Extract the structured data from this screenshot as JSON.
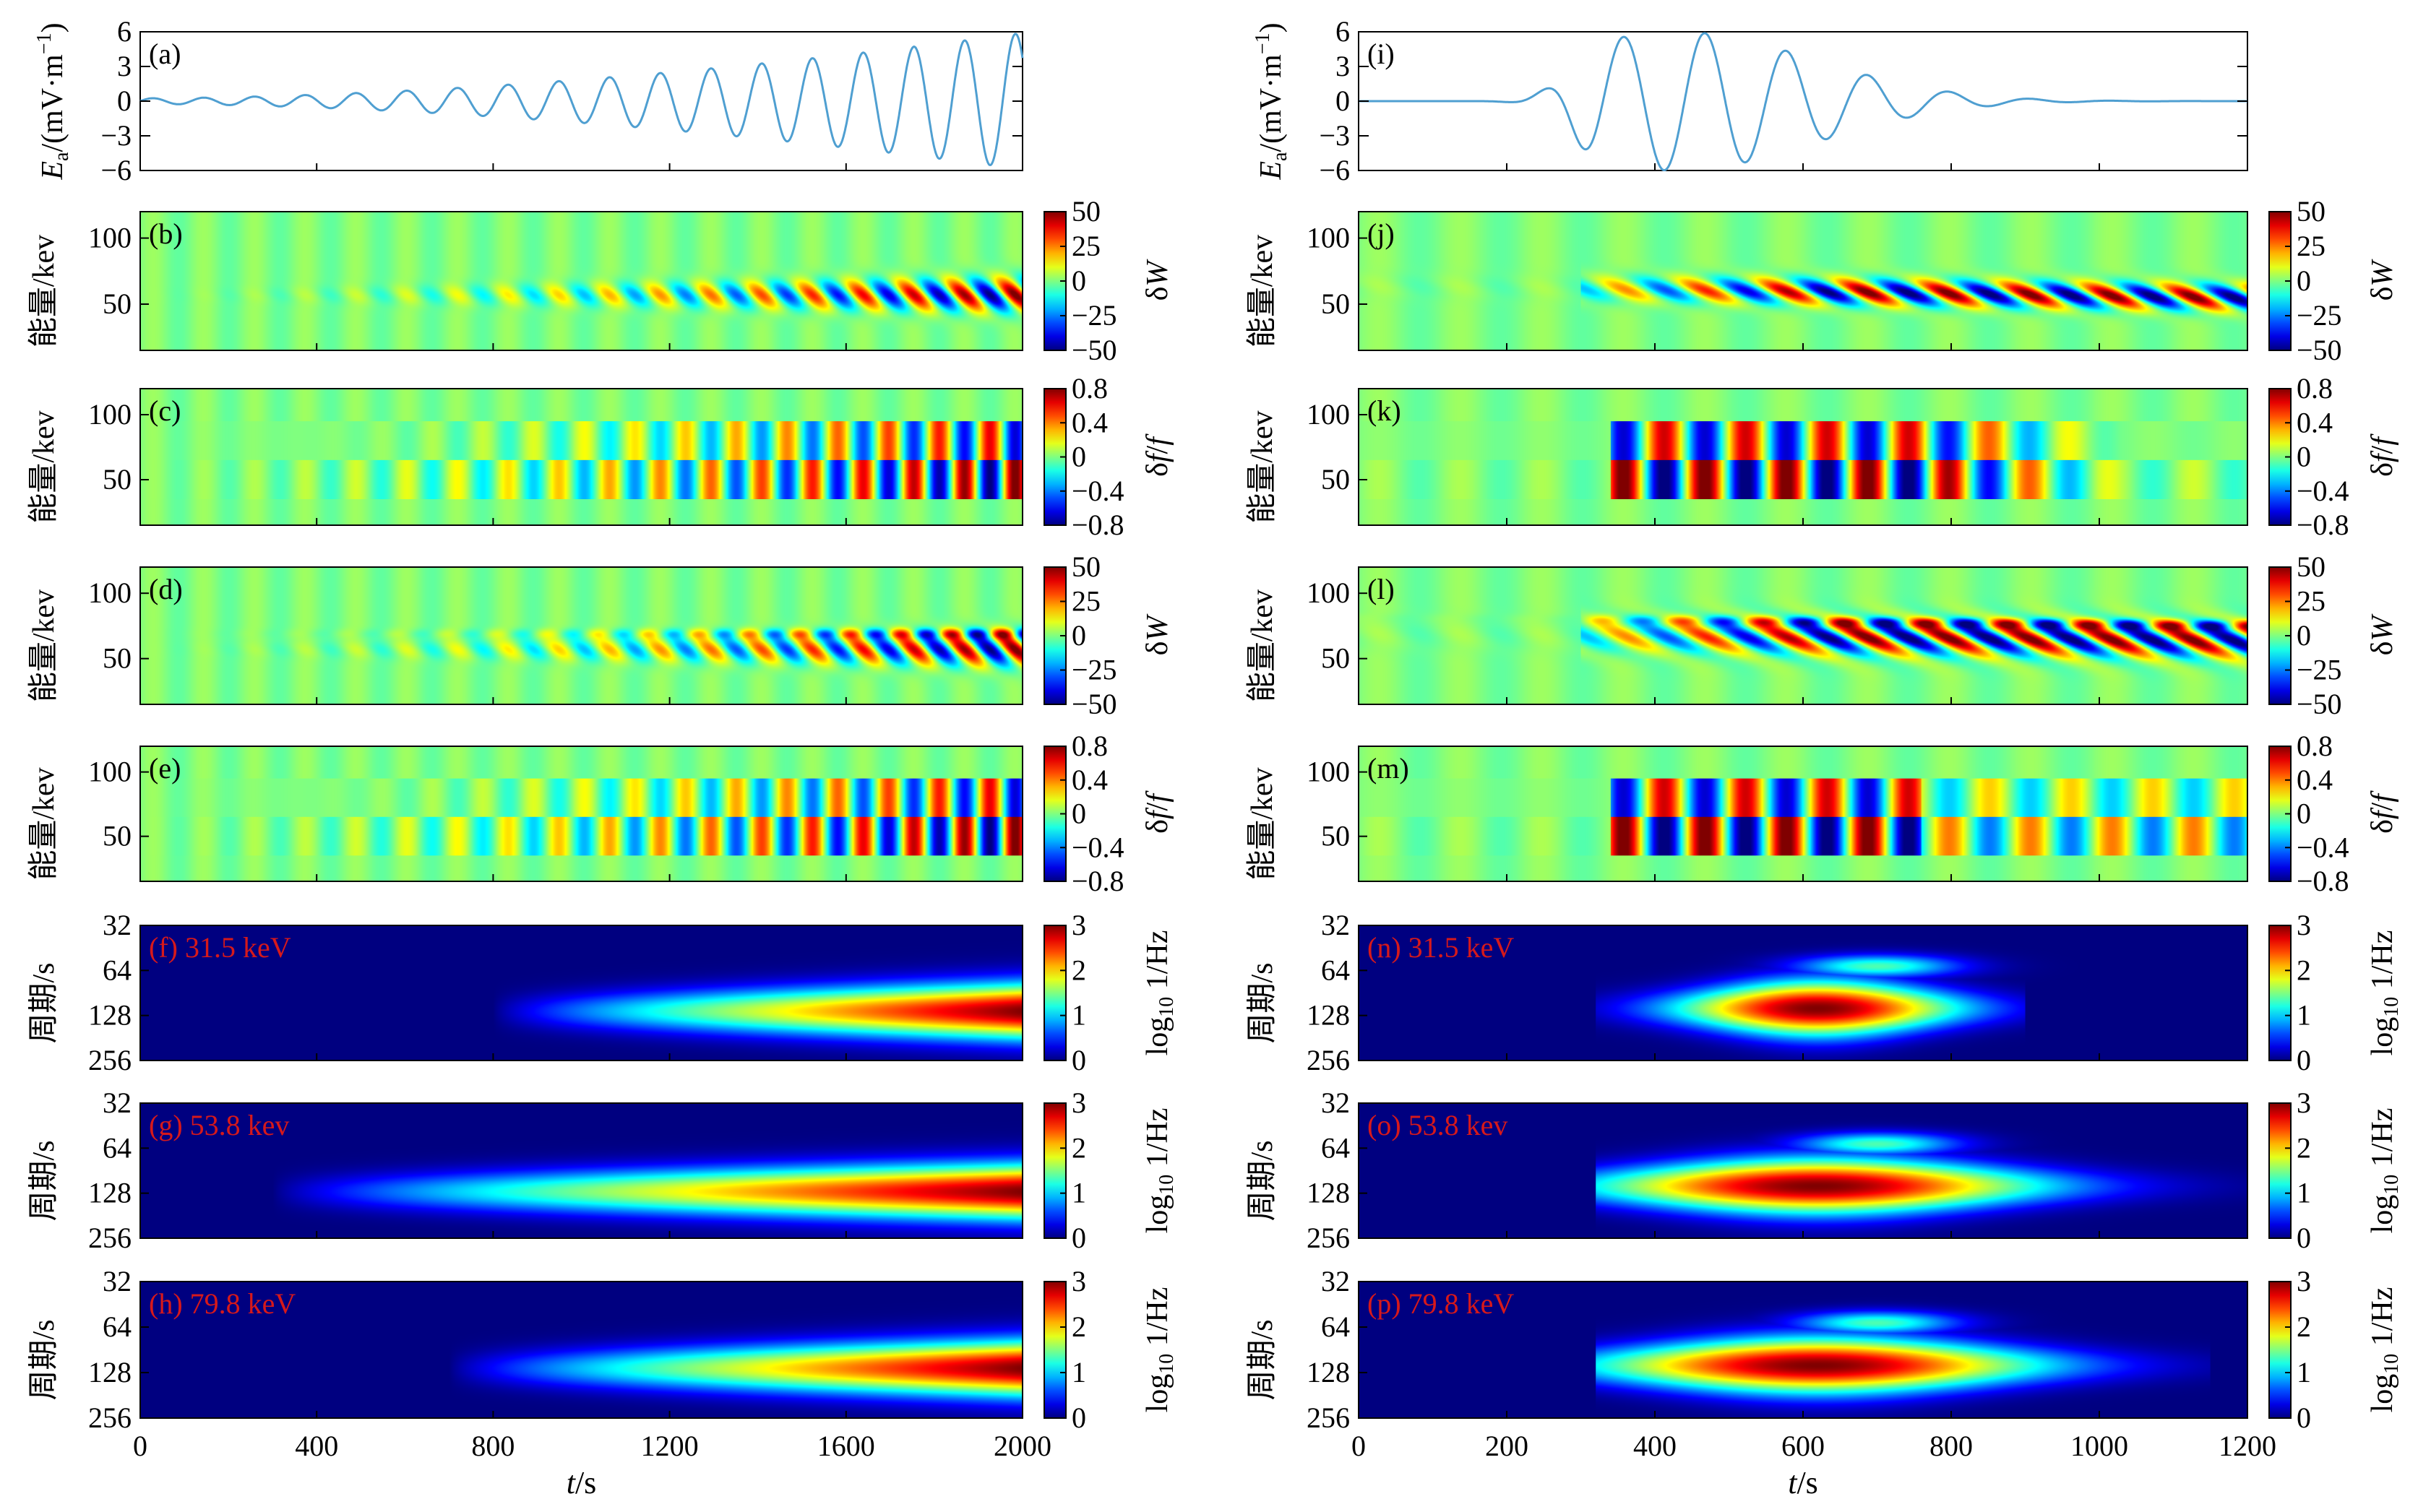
{
  "figure": {
    "time_label": "t/s",
    "energy_label": "能量/kev",
    "period_label": "周期/s",
    "ea_label": "E_a/(mV·m^-1)",
    "dw_cbar_label": "δW",
    "df_cbar_label": "δf/f",
    "pw_cbar_label": "log10 1/Hz",
    "colormap": "jet",
    "curve_color": "#4f9fd1",
    "panel_text_color": "#d6191b"
  },
  "chart_data": [
    {
      "type": "line",
      "panel": "(a)",
      "column": "left",
      "xlim": [
        0,
        2000
      ],
      "ylim": [
        -6,
        6
      ],
      "yticks": [
        "6",
        "3",
        "0",
        "-3",
        "-6"
      ],
      "wave": {
        "period_s": 115,
        "amplitude_start_mV_per_m": 0.25,
        "amplitude_end_mV_per_m": 5.9
      }
    },
    {
      "type": "heatmap",
      "panel": "(b)",
      "column": "left",
      "quantity": "δW",
      "xlim": [
        0,
        2000
      ],
      "yticks": [
        "100",
        "50"
      ],
      "clim": [
        -50,
        50
      ],
      "cbar_ticks": [
        "50",
        "25",
        "0",
        "-25",
        "-50"
      ]
    },
    {
      "type": "heatmap",
      "panel": "(c)",
      "column": "left",
      "quantity": "δf/f",
      "xlim": [
        0,
        2000
      ],
      "yticks": [
        "100",
        "50"
      ],
      "clim": [
        -0.8,
        0.8
      ],
      "cbar_ticks": [
        "0.8",
        "0.4",
        "0",
        "-0.4",
        "-0.8"
      ]
    },
    {
      "type": "heatmap",
      "panel": "(d)",
      "column": "left",
      "quantity": "δW",
      "xlim": [
        0,
        2000
      ],
      "yticks": [
        "100",
        "50"
      ],
      "clim": [
        -50,
        50
      ],
      "cbar_ticks": [
        "50",
        "25",
        "0",
        "-25",
        "-50"
      ]
    },
    {
      "type": "heatmap",
      "panel": "(e)",
      "column": "left",
      "quantity": "δf/f",
      "xlim": [
        0,
        2000
      ],
      "yticks": [
        "100",
        "50"
      ],
      "clim": [
        -0.8,
        0.8
      ],
      "cbar_ticks": [
        "0.8",
        "0.4",
        "0",
        "-0.4",
        "-0.8"
      ]
    },
    {
      "type": "heatmap",
      "panel": "(f)",
      "label": "(f) 31.5 keV",
      "column": "left",
      "quantity": "wavelet power",
      "xlim": [
        0,
        2000
      ],
      "yticks": [
        "32",
        "64",
        "128",
        "256"
      ],
      "clim": [
        0,
        3
      ],
      "cbar_ticks": [
        "3",
        "2",
        "1",
        "0"
      ],
      "peak_period_s": 120
    },
    {
      "type": "heatmap",
      "panel": "(g)",
      "label": "(g) 53.8 kev",
      "column": "left",
      "quantity": "wavelet power",
      "xlim": [
        0,
        2000
      ],
      "yticks": [
        "32",
        "64",
        "128",
        "256"
      ],
      "clim": [
        0,
        3
      ],
      "cbar_ticks": [
        "3",
        "2",
        "1",
        "0"
      ],
      "peak_period_s": 125
    },
    {
      "type": "heatmap",
      "panel": "(h)",
      "label": "(h) 79.8 keV",
      "column": "left",
      "quantity": "wavelet power",
      "xlim": [
        0,
        2000
      ],
      "yticks": [
        "32",
        "64",
        "128",
        "256"
      ],
      "clim": [
        0,
        3
      ],
      "cbar_ticks": [
        "3",
        "2",
        "1",
        "0"
      ],
      "peak_period_s": 120
    },
    {
      "type": "line",
      "panel": "(i)",
      "column": "right",
      "xlim": [
        0,
        1200
      ],
      "ylim": [
        -6,
        6
      ],
      "yticks": [
        "6",
        "3",
        "0",
        "-3",
        "-6"
      ],
      "wave": {
        "period_s": 110,
        "peak_time_s": 430,
        "peak_amplitude_mV_per_m": 6.0
      }
    },
    {
      "type": "heatmap",
      "panel": "(j)",
      "column": "right",
      "quantity": "δW",
      "xlim": [
        0,
        1200
      ],
      "yticks": [
        "100",
        "50"
      ],
      "clim": [
        -50,
        50
      ],
      "cbar_ticks": [
        "50",
        "25",
        "0",
        "-25",
        "-50"
      ]
    },
    {
      "type": "heatmap",
      "panel": "(k)",
      "column": "right",
      "quantity": "δf/f",
      "xlim": [
        0,
        1200
      ],
      "yticks": [
        "100",
        "50"
      ],
      "clim": [
        -0.8,
        0.8
      ],
      "cbar_ticks": [
        "0.8",
        "0.4",
        "0",
        "-0.4",
        "-0.8"
      ]
    },
    {
      "type": "heatmap",
      "panel": "(l)",
      "column": "right",
      "quantity": "δW",
      "xlim": [
        0,
        1200
      ],
      "yticks": [
        "100",
        "50"
      ],
      "clim": [
        -50,
        50
      ],
      "cbar_ticks": [
        "50",
        "25",
        "0",
        "-25",
        "-50"
      ]
    },
    {
      "type": "heatmap",
      "panel": "(m)",
      "column": "right",
      "quantity": "δf/f",
      "xlim": [
        0,
        1200
      ],
      "yticks": [
        "100",
        "50"
      ],
      "clim": [
        -0.8,
        0.8
      ],
      "cbar_ticks": [
        "0.8",
        "0.4",
        "0",
        "-0.4",
        "-0.8"
      ]
    },
    {
      "type": "heatmap",
      "panel": "(n)",
      "label": "(n) 31.5 keV",
      "column": "right",
      "quantity": "wavelet power",
      "xlim": [
        0,
        1200
      ],
      "yticks": [
        "32",
        "64",
        "128",
        "256"
      ],
      "clim": [
        0,
        3
      ],
      "cbar_ticks": [
        "3",
        "2",
        "1",
        "0"
      ],
      "peak_period_s": 115
    },
    {
      "type": "heatmap",
      "panel": "(o)",
      "label": "(o) 53.8 kev",
      "column": "right",
      "quantity": "wavelet power",
      "xlim": [
        0,
        1200
      ],
      "yticks": [
        "32",
        "64",
        "128",
        "256"
      ],
      "clim": [
        0,
        3
      ],
      "cbar_ticks": [
        "3",
        "2",
        "1",
        "0"
      ],
      "peak_period_s": 115
    },
    {
      "type": "heatmap",
      "panel": "(p)",
      "label": "(p) 79.8 keV",
      "column": "right",
      "quantity": "wavelet power",
      "xlim": [
        0,
        1200
      ],
      "yticks": [
        "32",
        "64",
        "128",
        "256"
      ],
      "clim": [
        0,
        3
      ],
      "cbar_ticks": [
        "3",
        "2",
        "1",
        "0"
      ],
      "peak_period_s": 115
    }
  ],
  "x_axes": {
    "left": {
      "ticks": [
        "0",
        "400",
        "800",
        "1200",
        "1600",
        "2000"
      ]
    },
    "right": {
      "ticks": [
        "0",
        "200",
        "400",
        "600",
        "800",
        "1000",
        "1200"
      ]
    }
  }
}
